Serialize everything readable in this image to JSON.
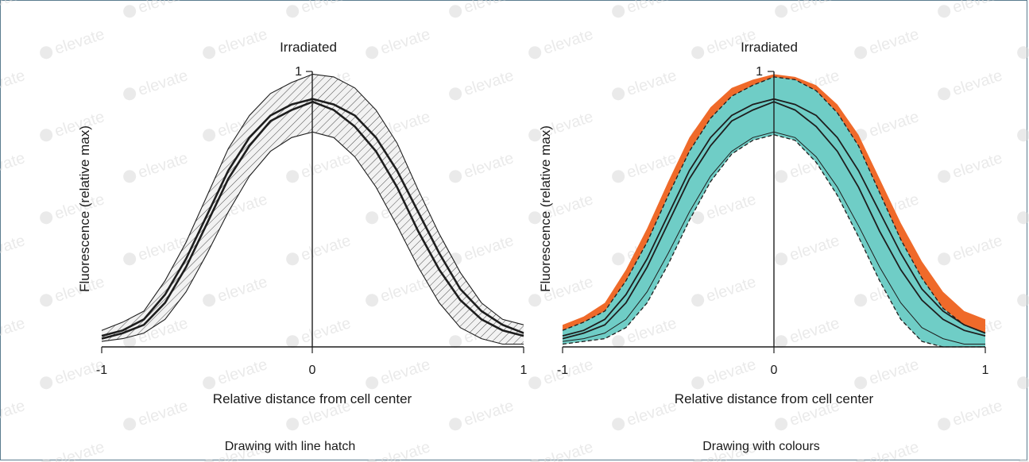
{
  "watermark": "elevate",
  "colors": {
    "line": "#1e1e1e",
    "hatch_fill": "#f2f2f2",
    "hatch_line": "#3a3a3a",
    "teal": "#6fcdc6",
    "orange": "#ef6a2a"
  },
  "chart_data": [
    {
      "type": "area",
      "title": "Irradiated",
      "caption": "Drawing with line hatch",
      "xlabel": "Relative distance from cell center",
      "ylabel": "Fluorescence (relative max)",
      "xlim": [
        -1,
        1
      ],
      "ylim": [
        0,
        1
      ],
      "x_ticks": [
        "-1",
        "0",
        "1"
      ],
      "y_ticks": [
        "1"
      ],
      "fill_style": "hatch",
      "x": [
        -1.0,
        -0.9,
        -0.8,
        -0.7,
        -0.6,
        -0.5,
        -0.4,
        -0.3,
        -0.2,
        -0.1,
        0.0,
        0.1,
        0.2,
        0.3,
        0.4,
        0.5,
        0.6,
        0.7,
        0.8,
        0.9,
        1.0
      ],
      "series": [
        {
          "values": [
            0.06,
            0.09,
            0.13,
            0.24,
            0.38,
            0.55,
            0.72,
            0.84,
            0.92,
            0.96,
            0.99,
            0.98,
            0.94,
            0.86,
            0.74,
            0.57,
            0.41,
            0.27,
            0.16,
            0.1,
            0.08
          ]
        },
        {
          "values": [
            0.04,
            0.06,
            0.1,
            0.19,
            0.32,
            0.48,
            0.64,
            0.76,
            0.84,
            0.88,
            0.9,
            0.88,
            0.84,
            0.76,
            0.64,
            0.49,
            0.34,
            0.21,
            0.13,
            0.08,
            0.05
          ]
        },
        {
          "values": [
            0.03,
            0.05,
            0.08,
            0.16,
            0.29,
            0.45,
            0.61,
            0.73,
            0.82,
            0.86,
            0.89,
            0.86,
            0.8,
            0.71,
            0.58,
            0.42,
            0.28,
            0.17,
            0.1,
            0.06,
            0.04
          ]
        },
        {
          "values": [
            0.02,
            0.03,
            0.05,
            0.1,
            0.2,
            0.34,
            0.49,
            0.62,
            0.71,
            0.76,
            0.78,
            0.76,
            0.69,
            0.58,
            0.44,
            0.29,
            0.16,
            0.07,
            0.03,
            0.01,
            0.01
          ]
        }
      ]
    },
    {
      "type": "area",
      "title": "Irradiated",
      "caption": "Drawing with colours",
      "xlabel": "Relative distance from cell center",
      "ylabel": "Fluorescence (relative max)",
      "xlim": [
        -1,
        1
      ],
      "ylim": [
        0,
        1
      ],
      "x_ticks": [
        "-1",
        "0",
        "1"
      ],
      "y_ticks": [
        "1"
      ],
      "fill_style": "colour",
      "x": [
        -1.0,
        -0.9,
        -0.8,
        -0.7,
        -0.6,
        -0.5,
        -0.4,
        -0.3,
        -0.2,
        -0.1,
        0.0,
        0.1,
        0.2,
        0.3,
        0.4,
        0.5,
        0.6,
        0.7,
        0.8,
        0.9,
        1.0
      ],
      "series": [
        {
          "values": [
            0.08,
            0.11,
            0.16,
            0.28,
            0.43,
            0.6,
            0.76,
            0.87,
            0.94,
            0.97,
            0.99,
            0.98,
            0.95,
            0.88,
            0.77,
            0.61,
            0.45,
            0.31,
            0.2,
            0.13,
            0.1
          ]
        },
        {
          "values": [
            0.06,
            0.09,
            0.13,
            0.24,
            0.38,
            0.55,
            0.71,
            0.83,
            0.91,
            0.95,
            0.98,
            0.97,
            0.93,
            0.85,
            0.73,
            0.56,
            0.39,
            0.25,
            0.14,
            0.08,
            0.05
          ]
        },
        {
          "values": [
            0.04,
            0.06,
            0.1,
            0.19,
            0.32,
            0.48,
            0.64,
            0.76,
            0.84,
            0.88,
            0.9,
            0.88,
            0.84,
            0.76,
            0.64,
            0.49,
            0.34,
            0.21,
            0.13,
            0.08,
            0.05
          ]
        },
        {
          "values": [
            0.03,
            0.05,
            0.08,
            0.16,
            0.29,
            0.45,
            0.61,
            0.73,
            0.82,
            0.86,
            0.89,
            0.86,
            0.8,
            0.71,
            0.58,
            0.42,
            0.28,
            0.17,
            0.1,
            0.06,
            0.04
          ]
        },
        {
          "values": [
            0.02,
            0.03,
            0.05,
            0.1,
            0.2,
            0.34,
            0.49,
            0.62,
            0.71,
            0.76,
            0.78,
            0.76,
            0.69,
            0.58,
            0.44,
            0.29,
            0.16,
            0.07,
            0.03,
            0.01,
            0.01
          ]
        },
        {
          "values": [
            0.01,
            0.02,
            0.03,
            0.07,
            0.16,
            0.3,
            0.46,
            0.6,
            0.7,
            0.75,
            0.77,
            0.75,
            0.67,
            0.55,
            0.4,
            0.24,
            0.1,
            0.02,
            0.0,
            0.0,
            0.0
          ]
        }
      ]
    }
  ]
}
